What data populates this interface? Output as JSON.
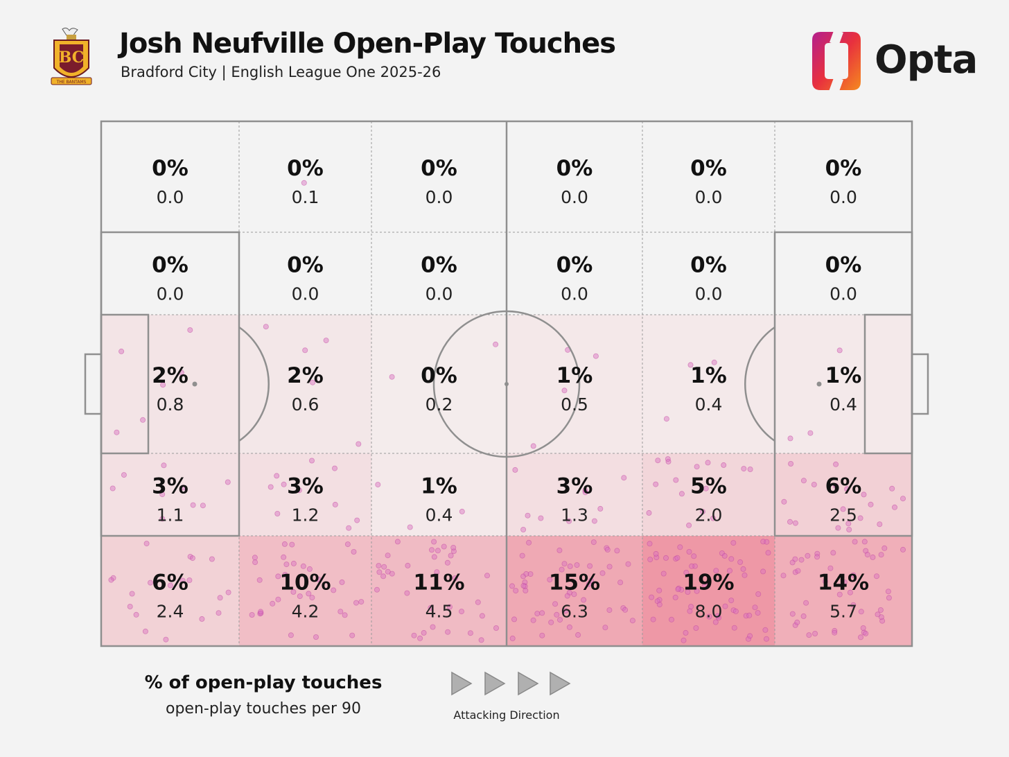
{
  "header": {
    "title": "Josh Neufville Open-Play Touches",
    "subtitle": "Bradford City | English League One 2025-26",
    "brand": "Opta",
    "crest_text": "BC",
    "crest_banner": "THE BANTAMS"
  },
  "colors": {
    "background": "#f3f3f3",
    "pitch_lines": "#8f8f8f",
    "dot": "#d96fc0",
    "heat_low": "#f4efef",
    "heat_high": "#ee98a6"
  },
  "legend": {
    "primary": "% of open-play touches",
    "secondary": "open-play touches per 90",
    "direction": "Attacking Direction"
  },
  "chart_data": {
    "type": "heatmap",
    "columns": 6,
    "rows": 5,
    "cells": [
      [
        {
          "pct": "0%",
          "per90": "0.0"
        },
        {
          "pct": "0%",
          "per90": "0.1"
        },
        {
          "pct": "0%",
          "per90": "0.0"
        },
        {
          "pct": "0%",
          "per90": "0.0"
        },
        {
          "pct": "0%",
          "per90": "0.0"
        },
        {
          "pct": "0%",
          "per90": "0.0"
        }
      ],
      [
        {
          "pct": "0%",
          "per90": "0.0"
        },
        {
          "pct": "0%",
          "per90": "0.0"
        },
        {
          "pct": "0%",
          "per90": "0.0"
        },
        {
          "pct": "0%",
          "per90": "0.0"
        },
        {
          "pct": "0%",
          "per90": "0.0"
        },
        {
          "pct": "0%",
          "per90": "0.0"
        }
      ],
      [
        {
          "pct": "2%",
          "per90": "0.8"
        },
        {
          "pct": "2%",
          "per90": "0.6"
        },
        {
          "pct": "0%",
          "per90": "0.2"
        },
        {
          "pct": "1%",
          "per90": "0.5"
        },
        {
          "pct": "1%",
          "per90": "0.4"
        },
        {
          "pct": "1%",
          "per90": "0.4"
        }
      ],
      [
        {
          "pct": "3%",
          "per90": "1.1"
        },
        {
          "pct": "3%",
          "per90": "1.2"
        },
        {
          "pct": "1%",
          "per90": "0.4"
        },
        {
          "pct": "3%",
          "per90": "1.3"
        },
        {
          "pct": "5%",
          "per90": "2.0"
        },
        {
          "pct": "6%",
          "per90": "2.5"
        }
      ],
      [
        {
          "pct": "6%",
          "per90": "2.4"
        },
        {
          "pct": "10%",
          "per90": "4.2"
        },
        {
          "pct": "11%",
          "per90": "4.5"
        },
        {
          "pct": "15%",
          "per90": "6.3"
        },
        {
          "pct": "19%",
          "per90": "8.0"
        },
        {
          "pct": "14%",
          "per90": "5.7"
        }
      ]
    ],
    "attacking_direction": "left-to-right"
  }
}
